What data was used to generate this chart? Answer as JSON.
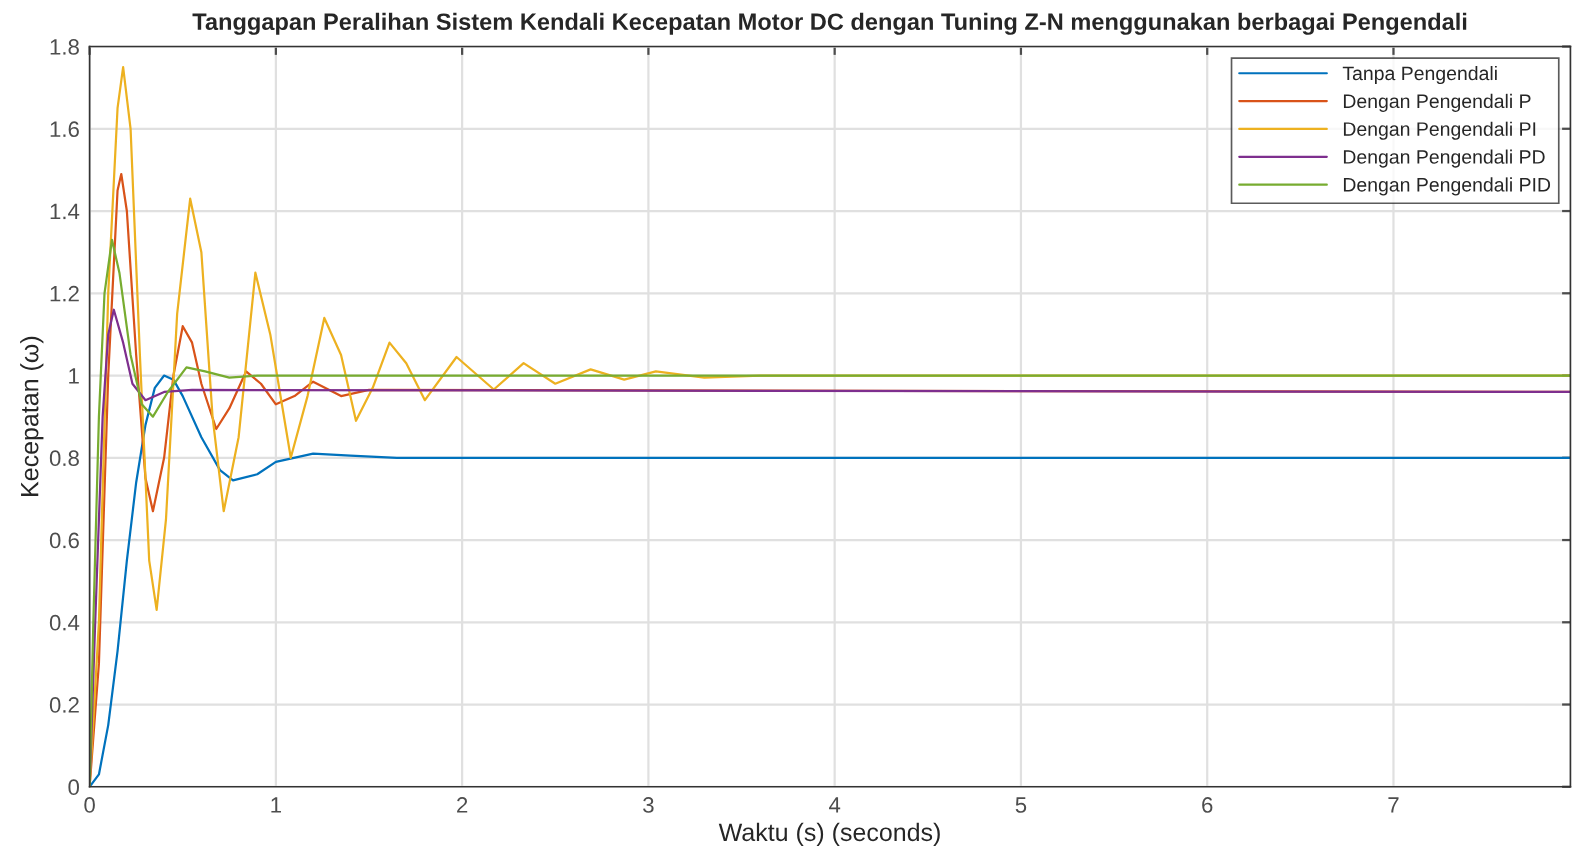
{
  "chart_data": {
    "type": "line",
    "title": "Tanggapan Peralihan Sistem Kendali Kecepatan Motor DC dengan Tuning Z-N menggunakan berbagai Pengendali",
    "xlabel": "Waktu (s) (seconds)",
    "ylabel": "Kecepatan (ω)",
    "xlim": [
      0,
      7.95
    ],
    "ylim": [
      0,
      1.8
    ],
    "xticks": [
      0,
      1,
      2,
      3,
      4,
      5,
      6,
      7
    ],
    "yticks": [
      0,
      0.2,
      0.4,
      0.6,
      0.8,
      1,
      1.2,
      1.4,
      1.6,
      1.8
    ],
    "grid": true,
    "legend": "top right",
    "marker": "none",
    "line_style": "solid",
    "series": [
      {
        "name": "Tanpa Pengendali",
        "color": "#0072bd",
        "x": [
          0,
          0.05,
          0.1,
          0.15,
          0.2,
          0.25,
          0.3,
          0.35,
          0.4,
          0.45,
          0.5,
          0.6,
          0.7,
          0.77,
          0.9,
          1.0,
          1.2,
          1.4,
          1.65,
          7.95
        ],
        "values": [
          0,
          0.03,
          0.15,
          0.33,
          0.55,
          0.74,
          0.88,
          0.97,
          1.0,
          0.99,
          0.95,
          0.85,
          0.77,
          0.745,
          0.76,
          0.79,
          0.81,
          0.805,
          0.8,
          0.8
        ]
      },
      {
        "name": "Dengan Pengendali P",
        "color": "#d95319",
        "x": [
          0,
          0.05,
          0.1,
          0.15,
          0.17,
          0.2,
          0.25,
          0.3,
          0.34,
          0.4,
          0.45,
          0.5,
          0.55,
          0.6,
          0.68,
          0.75,
          0.84,
          0.92,
          1.0,
          1.1,
          1.2,
          1.35,
          1.5,
          7.95
        ],
        "values": [
          0,
          0.3,
          1.0,
          1.45,
          1.49,
          1.4,
          1.05,
          0.75,
          0.67,
          0.8,
          1.0,
          1.12,
          1.08,
          0.98,
          0.87,
          0.92,
          1.01,
          0.98,
          0.93,
          0.95,
          0.985,
          0.95,
          0.965,
          0.96
        ]
      },
      {
        "name": "Dengan Pengendali PI",
        "color": "#edb120",
        "x": [
          0,
          0.05,
          0.1,
          0.15,
          0.18,
          0.22,
          0.27,
          0.32,
          0.36,
          0.41,
          0.47,
          0.54,
          0.6,
          0.66,
          0.72,
          0.8,
          0.89,
          0.97,
          1.08,
          1.17,
          1.26,
          1.35,
          1.43,
          1.52,
          1.61,
          1.7,
          1.8,
          1.97,
          2.17,
          2.33,
          2.5,
          2.69,
          2.87,
          3.04,
          3.3,
          3.6,
          7.95
        ],
        "values": [
          0,
          0.4,
          1.2,
          1.65,
          1.75,
          1.6,
          1.05,
          0.55,
          0.43,
          0.65,
          1.15,
          1.43,
          1.3,
          0.9,
          0.67,
          0.85,
          1.25,
          1.1,
          0.8,
          0.95,
          1.14,
          1.05,
          0.89,
          0.97,
          1.08,
          1.03,
          0.94,
          1.045,
          0.966,
          1.03,
          0.98,
          1.015,
          0.99,
          1.01,
          0.995,
          1.0,
          1.0
        ]
      },
      {
        "name": "Dengan Pengendali PD",
        "color": "#7e2f8e",
        "x": [
          0,
          0.03,
          0.07,
          0.1,
          0.13,
          0.18,
          0.23,
          0.3,
          0.4,
          0.55,
          7.95
        ],
        "values": [
          0,
          0.4,
          0.9,
          1.1,
          1.16,
          1.08,
          0.98,
          0.94,
          0.96,
          0.965,
          0.96
        ]
      },
      {
        "name": "Dengan Pengendali PID",
        "color": "#77ac30",
        "x": [
          0,
          0.02,
          0.05,
          0.08,
          0.12,
          0.16,
          0.22,
          0.28,
          0.34,
          0.42,
          0.52,
          0.62,
          0.75,
          0.9,
          7.95
        ],
        "values": [
          0,
          0.4,
          0.9,
          1.2,
          1.33,
          1.25,
          1.05,
          0.93,
          0.9,
          0.96,
          1.02,
          1.01,
          0.995,
          1.0,
          1.0
        ]
      }
    ]
  }
}
